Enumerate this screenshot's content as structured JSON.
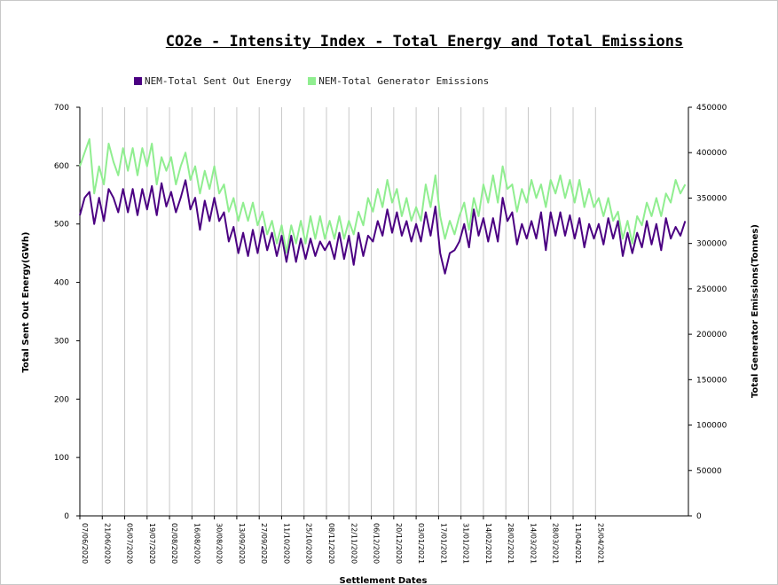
{
  "chart_data": {
    "type": "line",
    "title": "CO2e - Intensity Index - Total Energy and Total Emissions",
    "xlabel": "Settlement Dates",
    "ylabel_left": "Total Sent Out Energy(GWh)",
    "ylabel_right": "Total Generator Emissions(Tonnes)",
    "ylim_left": [
      0,
      700
    ],
    "ylim_right": [
      0,
      450000
    ],
    "yticks_left": [
      "0",
      "100",
      "200",
      "300",
      "400",
      "500",
      "600",
      "700"
    ],
    "yticks_right": [
      "0",
      "50000",
      "100000",
      "150000",
      "200000",
      "250000",
      "300000",
      "350000",
      "400000",
      "450000"
    ],
    "xticks": [
      "07/06/2020",
      "21/06/2020",
      "05/07/2020",
      "19/07/2020",
      "02/08/2020",
      "16/08/2020",
      "30/08/2020",
      "13/09/2020",
      "27/09/2020",
      "11/10/2020",
      "25/10/2020",
      "08/11/2020",
      "22/11/2020",
      "06/12/2020",
      "20/12/2020",
      "03/01/2021",
      "17/01/2021",
      "31/01/2021",
      "14/02/2021",
      "28/02/2021",
      "14/03/2021",
      "28/03/2021",
      "11/04/2021",
      "25/04/2021"
    ],
    "grid": "vertical",
    "legend_position": "top-left",
    "series": [
      {
        "name": "NEM-Total Sent Out Energy",
        "axis": "left",
        "color": "#4b0082",
        "anchors": [
          [
            0,
            515
          ],
          [
            3,
            545
          ],
          [
            6,
            555
          ],
          [
            9,
            500
          ],
          [
            12,
            545
          ],
          [
            15,
            505
          ],
          [
            18,
            560
          ],
          [
            21,
            545
          ],
          [
            24,
            520
          ],
          [
            27,
            560
          ],
          [
            30,
            520
          ],
          [
            33,
            560
          ],
          [
            36,
            515
          ],
          [
            39,
            560
          ],
          [
            42,
            525
          ],
          [
            45,
            565
          ],
          [
            48,
            515
          ],
          [
            51,
            570
          ],
          [
            54,
            530
          ],
          [
            57,
            555
          ],
          [
            60,
            520
          ],
          [
            63,
            545
          ],
          [
            66,
            575
          ],
          [
            69,
            525
          ],
          [
            72,
            545
          ],
          [
            75,
            490
          ],
          [
            78,
            540
          ],
          [
            81,
            505
          ],
          [
            84,
            545
          ],
          [
            87,
            505
          ],
          [
            90,
            520
          ],
          [
            93,
            470
          ],
          [
            96,
            495
          ],
          [
            99,
            450
          ],
          [
            102,
            485
          ],
          [
            105,
            445
          ],
          [
            108,
            490
          ],
          [
            111,
            450
          ],
          [
            114,
            495
          ],
          [
            117,
            455
          ],
          [
            120,
            485
          ],
          [
            123,
            445
          ],
          [
            126,
            480
          ],
          [
            129,
            435
          ],
          [
            132,
            480
          ],
          [
            135,
            435
          ],
          [
            138,
            475
          ],
          [
            141,
            440
          ],
          [
            144,
            475
          ],
          [
            147,
            445
          ],
          [
            150,
            470
          ],
          [
            153,
            455
          ],
          [
            156,
            470
          ],
          [
            159,
            440
          ],
          [
            162,
            485
          ],
          [
            165,
            440
          ],
          [
            168,
            480
          ],
          [
            171,
            430
          ],
          [
            174,
            485
          ],
          [
            177,
            445
          ],
          [
            180,
            480
          ],
          [
            183,
            470
          ],
          [
            186,
            505
          ],
          [
            189,
            480
          ],
          [
            192,
            525
          ],
          [
            195,
            485
          ],
          [
            198,
            520
          ],
          [
            201,
            480
          ],
          [
            204,
            505
          ],
          [
            207,
            470
          ],
          [
            210,
            500
          ],
          [
            213,
            470
          ],
          [
            216,
            520
          ],
          [
            219,
            480
          ],
          [
            222,
            530
          ],
          [
            225,
            450
          ],
          [
            228,
            415
          ],
          [
            231,
            450
          ],
          [
            234,
            455
          ],
          [
            237,
            470
          ],
          [
            240,
            500
          ],
          [
            243,
            460
          ],
          [
            246,
            525
          ],
          [
            249,
            480
          ],
          [
            252,
            510
          ],
          [
            255,
            470
          ],
          [
            258,
            510
          ],
          [
            261,
            470
          ],
          [
            264,
            545
          ],
          [
            267,
            505
          ],
          [
            270,
            520
          ],
          [
            273,
            465
          ],
          [
            276,
            500
          ],
          [
            279,
            475
          ],
          [
            282,
            505
          ],
          [
            285,
            475
          ],
          [
            288,
            520
          ],
          [
            291,
            455
          ],
          [
            294,
            520
          ],
          [
            297,
            480
          ],
          [
            300,
            520
          ],
          [
            303,
            480
          ],
          [
            306,
            515
          ],
          [
            309,
            475
          ],
          [
            312,
            510
          ],
          [
            315,
            460
          ],
          [
            318,
            500
          ],
          [
            321,
            475
          ],
          [
            324,
            500
          ],
          [
            327,
            465
          ],
          [
            330,
            510
          ],
          [
            333,
            475
          ],
          [
            336,
            505
          ],
          [
            339,
            445
          ],
          [
            342,
            485
          ],
          [
            345,
            450
          ],
          [
            348,
            485
          ],
          [
            351,
            460
          ],
          [
            354,
            505
          ],
          [
            357,
            465
          ],
          [
            360,
            500
          ],
          [
            363,
            455
          ],
          [
            366,
            510
          ],
          [
            369,
            475
          ],
          [
            372,
            495
          ],
          [
            375,
            480
          ],
          [
            378,
            505
          ]
        ]
      },
      {
        "name": "NEM-Total Generator Emissions",
        "axis": "right",
        "color": "#90ee90",
        "anchors": [
          [
            0,
            385000
          ],
          [
            3,
            400000
          ],
          [
            6,
            415000
          ],
          [
            9,
            355000
          ],
          [
            12,
            385000
          ],
          [
            15,
            365000
          ],
          [
            18,
            410000
          ],
          [
            21,
            390000
          ],
          [
            24,
            375000
          ],
          [
            27,
            405000
          ],
          [
            30,
            380000
          ],
          [
            33,
            405000
          ],
          [
            36,
            375000
          ],
          [
            39,
            405000
          ],
          [
            42,
            385000
          ],
          [
            45,
            410000
          ],
          [
            48,
            365000
          ],
          [
            51,
            395000
          ],
          [
            54,
            380000
          ],
          [
            57,
            395000
          ],
          [
            60,
            365000
          ],
          [
            63,
            385000
          ],
          [
            66,
            400000
          ],
          [
            69,
            370000
          ],
          [
            72,
            385000
          ],
          [
            75,
            355000
          ],
          [
            78,
            380000
          ],
          [
            81,
            360000
          ],
          [
            84,
            385000
          ],
          [
            87,
            355000
          ],
          [
            90,
            365000
          ],
          [
            93,
            335000
          ],
          [
            96,
            350000
          ],
          [
            99,
            325000
          ],
          [
            102,
            345000
          ],
          [
            105,
            325000
          ],
          [
            108,
            345000
          ],
          [
            111,
            320000
          ],
          [
            114,
            335000
          ],
          [
            117,
            310000
          ],
          [
            120,
            325000
          ],
          [
            123,
            300000
          ],
          [
            126,
            320000
          ],
          [
            129,
            290000
          ],
          [
            132,
            320000
          ],
          [
            135,
            300000
          ],
          [
            138,
            325000
          ],
          [
            141,
            300000
          ],
          [
            144,
            330000
          ],
          [
            147,
            305000
          ],
          [
            150,
            330000
          ],
          [
            153,
            305000
          ],
          [
            156,
            325000
          ],
          [
            159,
            305000
          ],
          [
            162,
            330000
          ],
          [
            165,
            305000
          ],
          [
            168,
            325000
          ],
          [
            171,
            310000
          ],
          [
            174,
            335000
          ],
          [
            177,
            320000
          ],
          [
            180,
            350000
          ],
          [
            183,
            335000
          ],
          [
            186,
            360000
          ],
          [
            189,
            340000
          ],
          [
            192,
            370000
          ],
          [
            195,
            345000
          ],
          [
            198,
            360000
          ],
          [
            201,
            330000
          ],
          [
            204,
            350000
          ],
          [
            207,
            325000
          ],
          [
            210,
            340000
          ],
          [
            213,
            325000
          ],
          [
            216,
            365000
          ],
          [
            219,
            340000
          ],
          [
            222,
            375000
          ],
          [
            225,
            330000
          ],
          [
            228,
            305000
          ],
          [
            231,
            325000
          ],
          [
            234,
            310000
          ],
          [
            237,
            330000
          ],
          [
            240,
            345000
          ],
          [
            243,
            315000
          ],
          [
            246,
            350000
          ],
          [
            249,
            330000
          ],
          [
            252,
            365000
          ],
          [
            255,
            345000
          ],
          [
            258,
            375000
          ],
          [
            261,
            345000
          ],
          [
            264,
            385000
          ],
          [
            267,
            360000
          ],
          [
            270,
            365000
          ],
          [
            273,
            335000
          ],
          [
            276,
            360000
          ],
          [
            279,
            345000
          ],
          [
            282,
            370000
          ],
          [
            285,
            350000
          ],
          [
            288,
            365000
          ],
          [
            291,
            340000
          ],
          [
            294,
            370000
          ],
          [
            297,
            355000
          ],
          [
            300,
            375000
          ],
          [
            303,
            350000
          ],
          [
            306,
            370000
          ],
          [
            309,
            345000
          ],
          [
            312,
            370000
          ],
          [
            315,
            340000
          ],
          [
            318,
            360000
          ],
          [
            321,
            340000
          ],
          [
            324,
            350000
          ],
          [
            327,
            330000
          ],
          [
            330,
            350000
          ],
          [
            333,
            325000
          ],
          [
            336,
            335000
          ],
          [
            339,
            305000
          ],
          [
            342,
            325000
          ],
          [
            345,
            300000
          ],
          [
            348,
            330000
          ],
          [
            351,
            320000
          ],
          [
            354,
            345000
          ],
          [
            357,
            330000
          ],
          [
            360,
            350000
          ],
          [
            363,
            330000
          ],
          [
            366,
            355000
          ],
          [
            369,
            345000
          ],
          [
            372,
            370000
          ],
          [
            375,
            355000
          ],
          [
            378,
            365000
          ]
        ]
      }
    ]
  }
}
